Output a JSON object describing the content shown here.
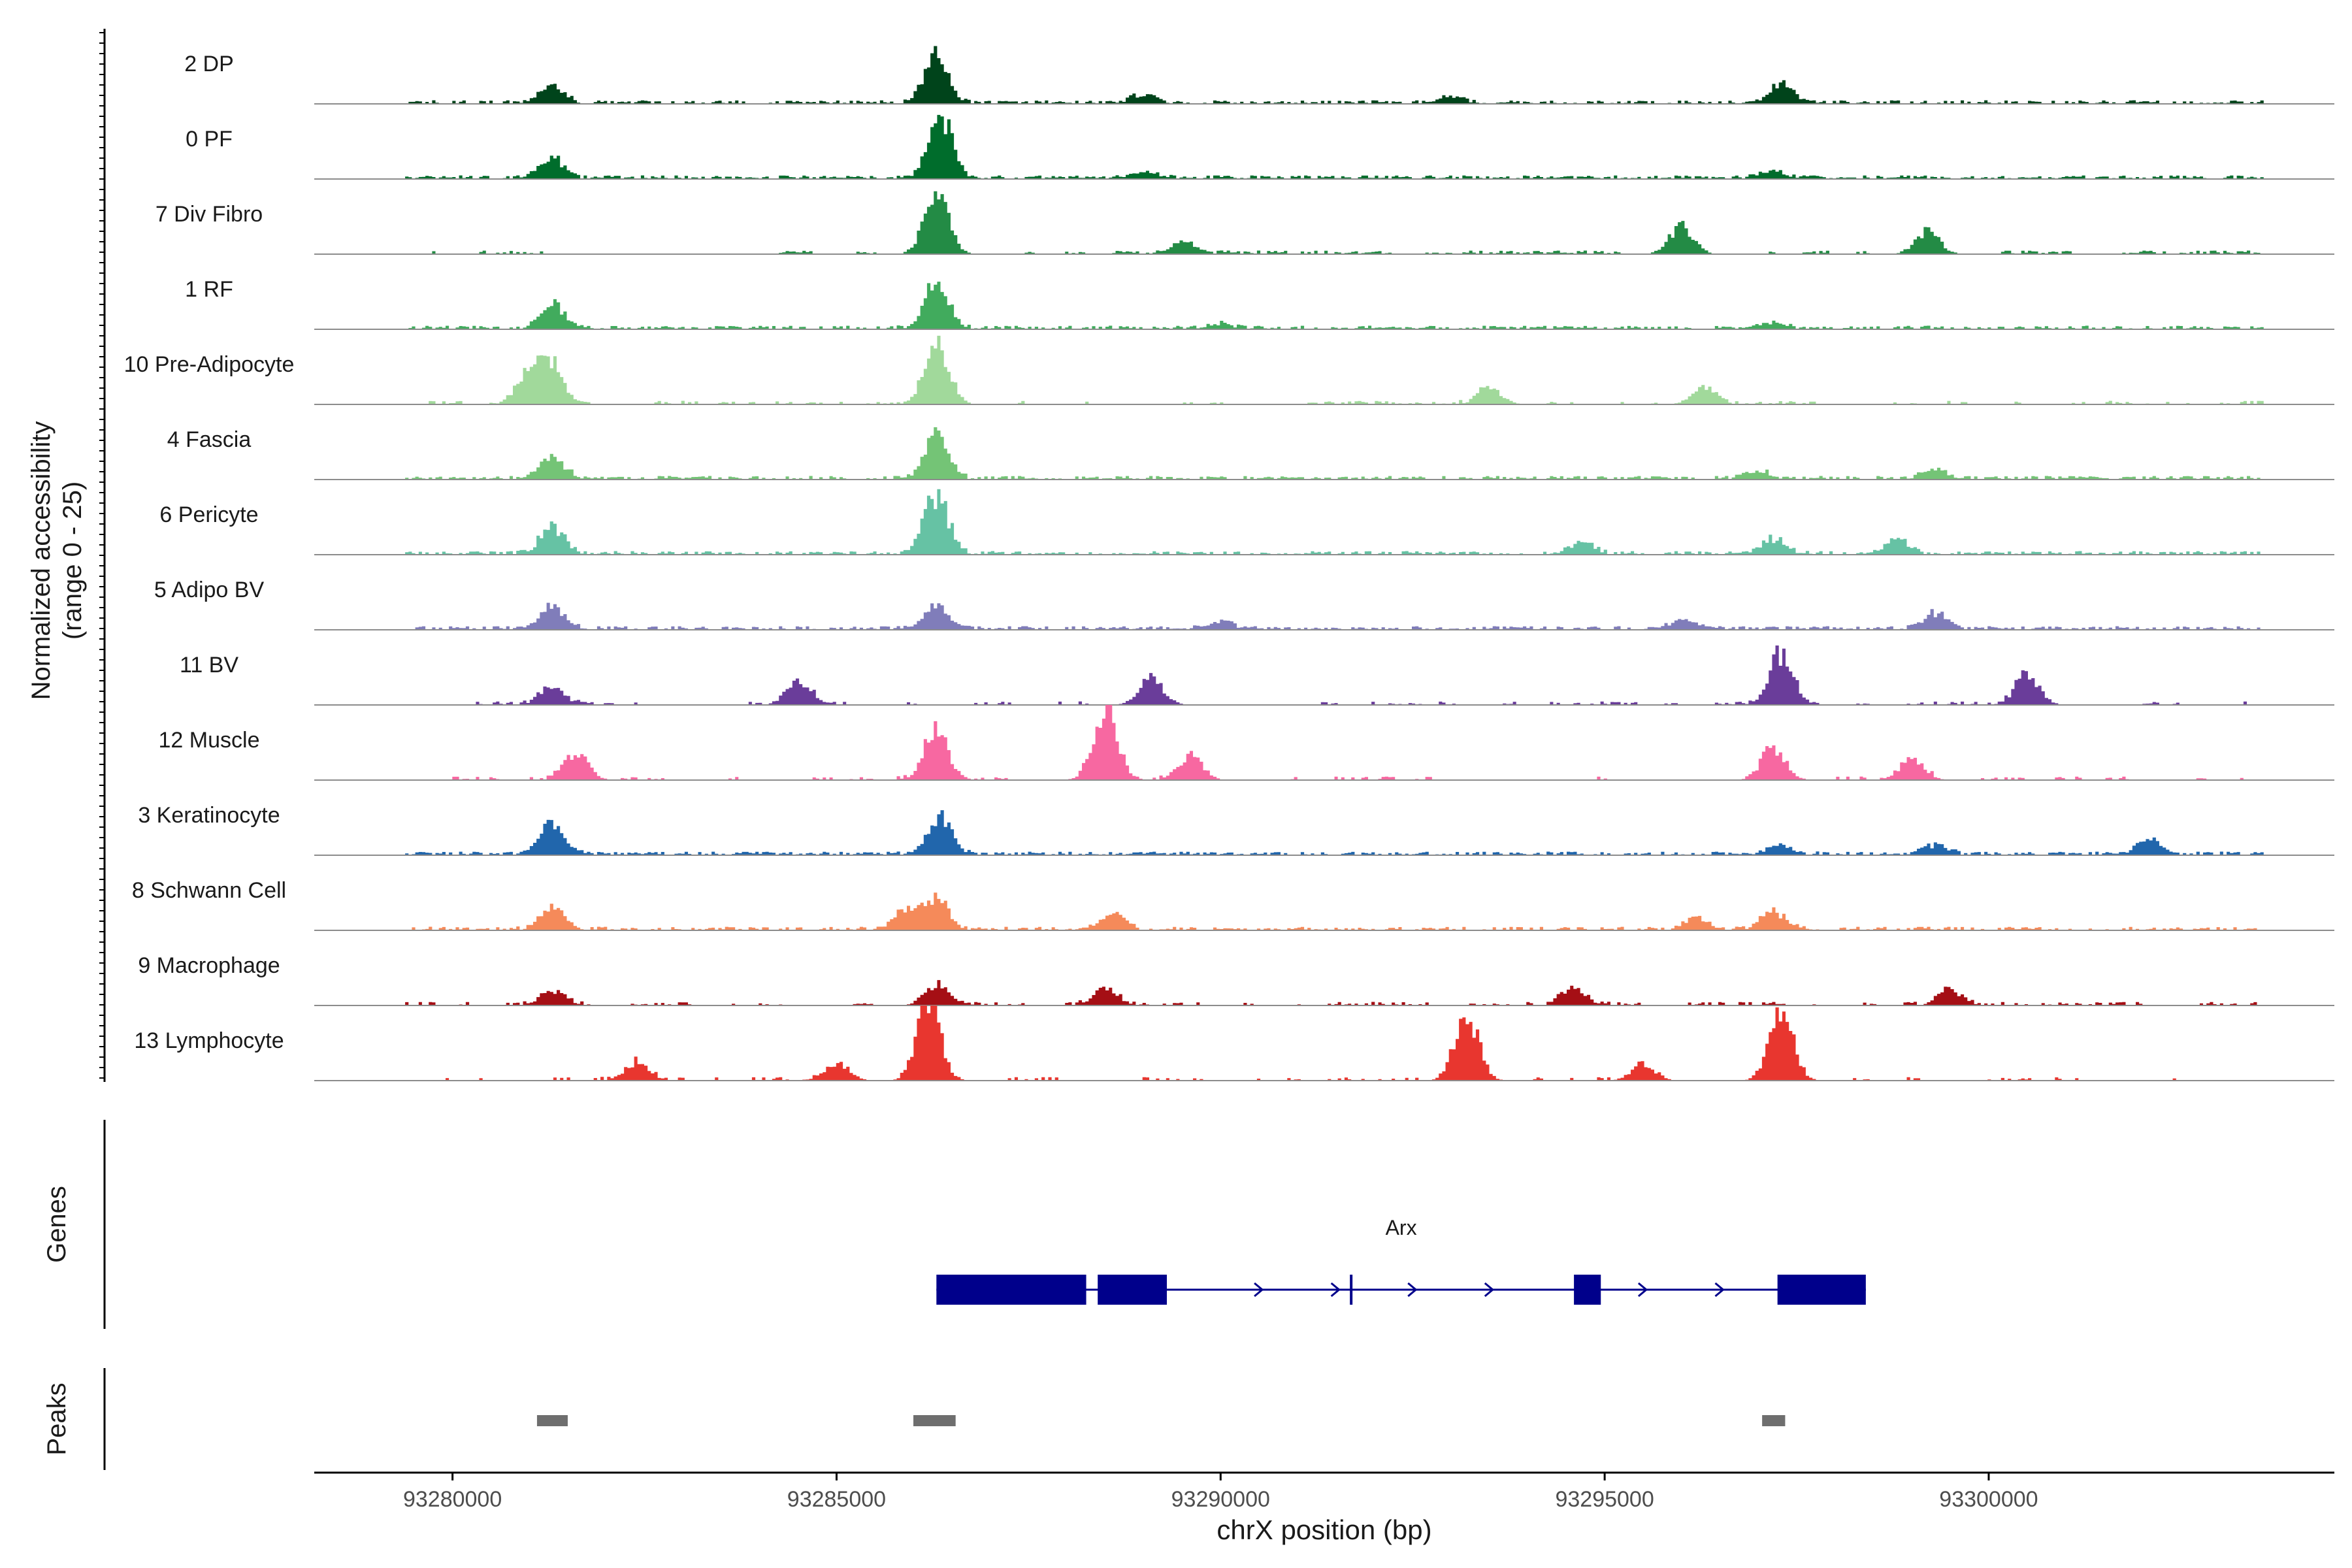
{
  "chart_data": {
    "type": "area",
    "title": "",
    "ylabel_line1": "Normalized accessibility",
    "ylabel_line2": "(range 0 - 25)",
    "ylim": [
      0,
      25
    ],
    "xlabel": "chrX position (bp)",
    "xlim": [
      93278200,
      93304500
    ],
    "x_ticks": [
      93280000,
      93285000,
      93290000,
      93295000,
      93300000
    ],
    "x_tick_labels": [
      "93280000",
      "93285000",
      "93290000",
      "93295000",
      "93300000"
    ],
    "genes_label": "Genes",
    "peaks_label": "Peaks",
    "tracks": [
      {
        "name": "2 DP",
        "color": "#00441B",
        "density": 0.8,
        "peaks": [
          [
            93281300,
            0.28
          ],
          [
            93286300,
            0.75
          ],
          [
            93297300,
            0.3
          ],
          [
            93289000,
            0.15
          ],
          [
            93293000,
            0.12
          ]
        ]
      },
      {
        "name": "0 PF",
        "color": "#006D2C",
        "density": 0.95,
        "peaks": [
          [
            93281300,
            0.32
          ],
          [
            93286350,
            1.0
          ],
          [
            93297200,
            0.12
          ],
          [
            93289000,
            0.1
          ]
        ]
      },
      {
        "name": "7 Div Fibro",
        "color": "#238B45",
        "density": 0.55,
        "peaks": [
          [
            93286300,
            1.0
          ],
          [
            93296000,
            0.45
          ],
          [
            93299200,
            0.38
          ],
          [
            93289500,
            0.2
          ]
        ]
      },
      {
        "name": "1 RF",
        "color": "#41AB5D",
        "density": 0.8,
        "peaks": [
          [
            93281300,
            0.42
          ],
          [
            93286300,
            0.72
          ],
          [
            93297200,
            0.1
          ],
          [
            93290000,
            0.08
          ]
        ]
      },
      {
        "name": "10 Pre-Adipocyte",
        "color": "#A1D99B",
        "density": 0.35,
        "peaks": [
          [
            93281000,
            0.55
          ],
          [
            93281300,
            0.62
          ],
          [
            93286300,
            1.1
          ],
          [
            93296300,
            0.3
          ],
          [
            93293500,
            0.25
          ]
        ]
      },
      {
        "name": "4 Fascia",
        "color": "#74C476",
        "density": 0.85,
        "peaks": [
          [
            93281300,
            0.35
          ],
          [
            93286300,
            0.7
          ],
          [
            93297000,
            0.12
          ],
          [
            93299300,
            0.15
          ]
        ]
      },
      {
        "name": "6 Pericyte",
        "color": "#66C2A4",
        "density": 0.8,
        "peaks": [
          [
            93281300,
            0.45
          ],
          [
            93286300,
            1.0
          ],
          [
            93294700,
            0.2
          ],
          [
            93297200,
            0.25
          ],
          [
            93298800,
            0.25
          ]
        ]
      },
      {
        "name": "5 Adipo BV",
        "color": "#807DBA",
        "density": 0.8,
        "peaks": [
          [
            93281300,
            0.4
          ],
          [
            93286300,
            0.35
          ],
          [
            93299300,
            0.28
          ],
          [
            93296000,
            0.15
          ],
          [
            93290000,
            0.12
          ]
        ]
      },
      {
        "name": "11 BV",
        "color": "#6A3D9A",
        "density": 0.35,
        "peaks": [
          [
            93281300,
            0.3
          ],
          [
            93284500,
            0.4
          ],
          [
            93289100,
            0.45
          ],
          [
            93297300,
            0.85
          ],
          [
            93300500,
            0.5
          ]
        ]
      },
      {
        "name": "12 Muscle",
        "color": "#F768A1",
        "density": 0.35,
        "peaks": [
          [
            93281600,
            0.45
          ],
          [
            93286300,
            0.85
          ],
          [
            93288500,
            1.2
          ],
          [
            93289600,
            0.4
          ],
          [
            93297200,
            0.55
          ],
          [
            93299000,
            0.35
          ]
        ]
      },
      {
        "name": "3 Keratinocyte",
        "color": "#2166AC",
        "density": 0.85,
        "peaks": [
          [
            93281300,
            0.5
          ],
          [
            93286350,
            0.62
          ],
          [
            93297300,
            0.15
          ],
          [
            93302100,
            0.25
          ],
          [
            93299300,
            0.15
          ]
        ]
      },
      {
        "name": "8 Schwann Cell",
        "color": "#F58A5A",
        "density": 0.75,
        "peaks": [
          [
            93281300,
            0.35
          ],
          [
            93286300,
            0.55
          ],
          [
            93285900,
            0.3
          ],
          [
            93288600,
            0.28
          ],
          [
            93297200,
            0.3
          ],
          [
            93296200,
            0.2
          ]
        ]
      },
      {
        "name": "9 Macrophage",
        "color": "#A50F15",
        "density": 0.4,
        "peaks": [
          [
            93281300,
            0.25
          ],
          [
            93286300,
            0.35
          ],
          [
            93288500,
            0.3
          ],
          [
            93294600,
            0.3
          ],
          [
            93299500,
            0.25
          ]
        ]
      },
      {
        "name": "13 Lymphocyte",
        "color": "#E8362F",
        "density": 0.25,
        "peaks": [
          [
            93286200,
            1.2
          ],
          [
            93293200,
            1.05
          ],
          [
            93297300,
            1.15
          ],
          [
            93295500,
            0.28
          ],
          [
            93282400,
            0.28
          ],
          [
            93285000,
            0.3
          ]
        ]
      }
    ],
    "gene": {
      "name": "Arx",
      "strand": "+",
      "start": 93286300,
      "end": 93298400,
      "exons": [
        [
          93286300,
          93288250
        ],
        [
          93288400,
          93289300
        ],
        [
          93294600,
          93294950
        ],
        [
          93297250,
          93298400
        ]
      ],
      "marker": 93291700,
      "color": "#00008B"
    },
    "peaks": [
      [
        93281100,
        93281500
      ],
      [
        93286000,
        93286550
      ],
      [
        93297050,
        93297350
      ]
    ]
  }
}
